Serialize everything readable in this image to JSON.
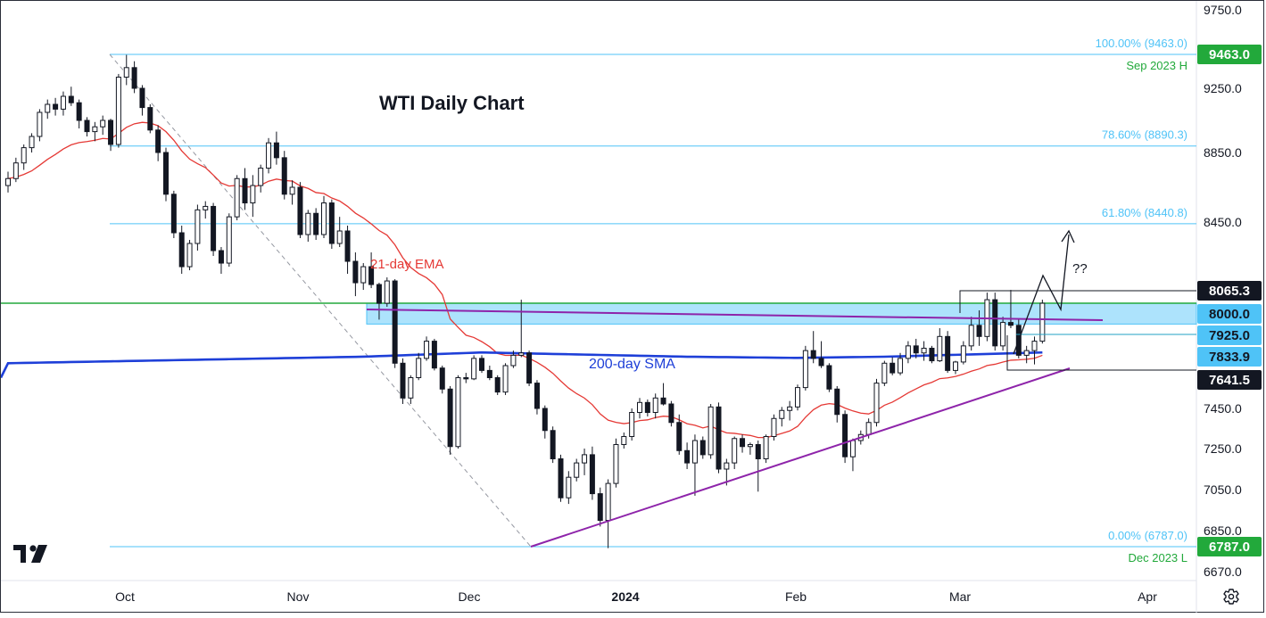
{
  "chart_data": {
    "type": "candlestick",
    "title": "WTI Daily Chart",
    "y_axis": {
      "ticks": [
        "9750.0",
        "9250.0",
        "8850.0",
        "8450.0",
        "7450.0",
        "7250.0",
        "7050.0",
        "6850.0",
        "6670.0"
      ],
      "ylim": [
        6620,
        9760
      ]
    },
    "x_axis": {
      "ticks": [
        "Oct",
        "Nov",
        "Dec",
        "2024",
        "Feb",
        "Mar",
        "Apr"
      ]
    },
    "price_tags": [
      {
        "label": "9463.0",
        "value": 9463.0,
        "bg": "#22a93b",
        "fg": "#ffffff"
      },
      {
        "label": "8065.3",
        "value": 8065.3,
        "bg": "#131722",
        "fg": "#ffffff"
      },
      {
        "label": "8000.0",
        "value": 8000.0,
        "bg": "#4fc3f7",
        "fg": "#131722"
      },
      {
        "label": "7925.0",
        "value": 7925.0,
        "bg": "#4fc3f7",
        "fg": "#131722"
      },
      {
        "label": "7833.9",
        "value": 7833.9,
        "bg": "#4fc3f7",
        "fg": "#131722"
      },
      {
        "label": "7641.5",
        "value": 7641.5,
        "bg": "#131722",
        "fg": "#ffffff"
      },
      {
        "label": "6787.0",
        "value": 6787.0,
        "bg": "#22a93b",
        "fg": "#ffffff"
      }
    ],
    "fib_levels": [
      {
        "label": "100.00% (9463.0)",
        "value": 9463.0
      },
      {
        "label": "78.60% (8890.3)",
        "value": 8890.3
      },
      {
        "label": "61.80% (8440.8)",
        "value": 8440.8
      },
      {
        "label": "0.00% (6787.0)",
        "value": 6787.0
      }
    ],
    "annotations": [
      {
        "text": "Sep 2023 H",
        "value": 9463.0
      },
      {
        "text": "Dec 2023 L",
        "value": 6787.0
      },
      {
        "text": "21-day EMA",
        "color": "#e53935"
      },
      {
        "text": "200-day SMA",
        "color": "#1e3fd8"
      },
      {
        "text": "??",
        "color": "#131722"
      }
    ],
    "resistance_zone": {
      "low": 7980,
      "high": 8065.3
    },
    "support_line": {
      "value": 8040
    },
    "candles": [
      [
        8660,
        8740,
        8620,
        8700
      ],
      [
        8700,
        8820,
        8680,
        8790
      ],
      [
        8790,
        8900,
        8750,
        8880
      ],
      [
        8880,
        8970,
        8850,
        8950
      ],
      [
        8950,
        9120,
        8920,
        9100
      ],
      [
        9100,
        9180,
        9060,
        9150
      ],
      [
        9150,
        9190,
        9080,
        9120
      ],
      [
        9120,
        9230,
        9080,
        9200
      ],
      [
        9200,
        9260,
        9140,
        9160
      ],
      [
        9160,
        9180,
        9000,
        9050
      ],
      [
        9050,
        9070,
        8950,
        8980
      ],
      [
        8980,
        9040,
        8920,
        9010
      ],
      [
        9010,
        9080,
        8960,
        9050
      ],
      [
        9050,
        9060,
        8860,
        8900
      ],
      [
        8900,
        9340,
        8880,
        9320
      ],
      [
        9320,
        9460,
        9270,
        9380
      ],
      [
        9380,
        9420,
        9220,
        9250
      ],
      [
        9250,
        9270,
        9080,
        9130
      ],
      [
        9130,
        9150,
        8970,
        8990
      ],
      [
        8990,
        9020,
        8800,
        8850
      ],
      [
        8850,
        8880,
        8570,
        8610
      ],
      [
        8610,
        8630,
        8360,
        8390
      ],
      [
        8390,
        8430,
        8160,
        8200
      ],
      [
        8200,
        8350,
        8180,
        8330
      ],
      [
        8330,
        8550,
        8290,
        8520
      ],
      [
        8520,
        8570,
        8470,
        8540
      ],
      [
        8540,
        8560,
        8260,
        8290
      ],
      [
        8290,
        8310,
        8160,
        8220
      ],
      [
        8220,
        8500,
        8200,
        8480
      ],
      [
        8480,
        8720,
        8460,
        8700
      ],
      [
        8700,
        8760,
        8520,
        8560
      ],
      [
        8560,
        8720,
        8480,
        8660
      ],
      [
        8660,
        8780,
        8620,
        8760
      ],
      [
        8760,
        8940,
        8730,
        8910
      ],
      [
        8910,
        8980,
        8780,
        8820
      ],
      [
        8820,
        8860,
        8580,
        8610
      ],
      [
        8610,
        8690,
        8550,
        8650
      ],
      [
        8650,
        8680,
        8360,
        8380
      ],
      [
        8380,
        8520,
        8340,
        8500
      ],
      [
        8500,
        8530,
        8350,
        8380
      ],
      [
        8380,
        8600,
        8360,
        8560
      ],
      [
        8560,
        8580,
        8300,
        8330
      ],
      [
        8330,
        8480,
        8310,
        8400
      ],
      [
        8400,
        8430,
        8160,
        8230
      ],
      [
        8230,
        8280,
        8050,
        8110
      ],
      [
        8110,
        8220,
        8070,
        8200
      ],
      [
        8200,
        8280,
        8080,
        8100
      ],
      [
        8100,
        8110,
        7980,
        8030
      ],
      [
        8030,
        8140,
        8020,
        8120
      ],
      [
        8120,
        8130,
        7740,
        7780
      ],
      [
        7780,
        7820,
        7480,
        7520
      ],
      [
        7520,
        7680,
        7480,
        7660
      ],
      [
        7660,
        7850,
        7640,
        7820
      ],
      [
        7820,
        7920,
        7800,
        7900
      ],
      [
        7900,
        7910,
        7720,
        7740
      ],
      [
        7740,
        7760,
        7550,
        7580
      ],
      [
        7580,
        7600,
        7220,
        7260
      ],
      [
        7260,
        7680,
        7250,
        7660
      ],
      [
        7660,
        7700,
        7620,
        7650
      ],
      [
        7650,
        7840,
        7640,
        7820
      ],
      [
        7820,
        7840,
        7700,
        7720
      ],
      [
        7720,
        7760,
        7640,
        7660
      ],
      [
        7660,
        7680,
        7540,
        7560
      ],
      [
        7560,
        7780,
        7540,
        7760
      ],
      [
        7760,
        7860,
        7740,
        7840
      ],
      [
        7840,
        8040,
        7830,
        7850
      ],
      [
        7850,
        7860,
        7600,
        7620
      ],
      [
        7620,
        7640,
        7420,
        7450
      ],
      [
        7450,
        7470,
        7300,
        7340
      ],
      [
        7340,
        7360,
        7180,
        7200
      ],
      [
        7200,
        7220,
        6990,
        7010
      ],
      [
        7010,
        7140,
        6980,
        7110
      ],
      [
        7110,
        7200,
        7090,
        7180
      ],
      [
        7180,
        7250,
        7120,
        7220
      ],
      [
        7220,
        7260,
        7000,
        7030
      ],
      [
        7030,
        7060,
        6870,
        6900
      ],
      [
        6900,
        7100,
        6780,
        7080
      ],
      [
        7080,
        7300,
        7060,
        7270
      ],
      [
        7270,
        7330,
        7250,
        7310
      ],
      [
        7310,
        7450,
        7290,
        7430
      ],
      [
        7430,
        7520,
        7400,
        7490
      ],
      [
        7490,
        7510,
        7410,
        7430
      ],
      [
        7430,
        7550,
        7400,
        7520
      ],
      [
        7520,
        7620,
        7470,
        7480
      ],
      [
        7480,
        7500,
        7360,
        7380
      ],
      [
        7380,
        7420,
        7220,
        7240
      ],
      [
        7240,
        7280,
        7150,
        7180
      ],
      [
        7180,
        7320,
        7020,
        7290
      ],
      [
        7290,
        7310,
        7200,
        7220
      ],
      [
        7220,
        7480,
        7200,
        7460
      ],
      [
        7460,
        7490,
        7130,
        7150
      ],
      [
        7150,
        7200,
        7070,
        7180
      ],
      [
        7180,
        7310,
        7150,
        7300
      ],
      [
        7300,
        7320,
        7230,
        7260
      ],
      [
        7260,
        7280,
        7220,
        7270
      ],
      [
        7270,
        7290,
        7040,
        7200
      ],
      [
        7200,
        7320,
        7180,
        7310
      ],
      [
        7310,
        7420,
        7290,
        7400
      ],
      [
        7400,
        7460,
        7360,
        7440
      ],
      [
        7440,
        7500,
        7390,
        7460
      ],
      [
        7460,
        7610,
        7440,
        7590
      ],
      [
        7590,
        7880,
        7570,
        7860
      ],
      [
        7860,
        7940,
        7780,
        7820
      ],
      [
        7820,
        7900,
        7740,
        7760
      ],
      [
        7760,
        7780,
        7560,
        7580
      ],
      [
        7580,
        7600,
        7380,
        7420
      ],
      [
        7420,
        7440,
        7180,
        7210
      ],
      [
        7210,
        7300,
        7140,
        7290
      ],
      [
        7290,
        7340,
        7270,
        7320
      ],
      [
        7320,
        7400,
        7300,
        7380
      ],
      [
        7380,
        7650,
        7360,
        7620
      ],
      [
        7620,
        7800,
        7600,
        7780
      ],
      [
        7780,
        7830,
        7680,
        7700
      ],
      [
        7700,
        7850,
        7680,
        7820
      ],
      [
        7820,
        7900,
        7780,
        7880
      ],
      [
        7880,
        7910,
        7820,
        7850
      ],
      [
        7850,
        7900,
        7800,
        7870
      ],
      [
        7870,
        7880,
        7780,
        7800
      ],
      [
        7800,
        7950,
        7790,
        7920
      ],
      [
        7920,
        7940,
        7700,
        7720
      ],
      [
        7720,
        7800,
        7690,
        7790
      ],
      [
        7790,
        7900,
        7770,
        7880
      ],
      [
        7880,
        7990,
        7860,
        7960
      ],
      [
        7960,
        8010,
        7880,
        7920
      ],
      [
        7920,
        8060,
        7900,
        8040
      ],
      [
        8040,
        8060,
        7860,
        7880
      ],
      [
        7880,
        7990,
        7860,
        7970
      ],
      [
        7970,
        8070,
        7950,
        7960
      ],
      [
        7960,
        7980,
        7820,
        7840
      ],
      [
        7840,
        7880,
        7780,
        7860
      ],
      [
        7860,
        7920,
        7770,
        7900
      ],
      [
        7900,
        8040,
        7890,
        8030
      ]
    ]
  },
  "logo": {
    "name": "tradingview-logo-icon",
    "text": "17"
  },
  "settings": {
    "icon": "settings-gear-icon"
  }
}
